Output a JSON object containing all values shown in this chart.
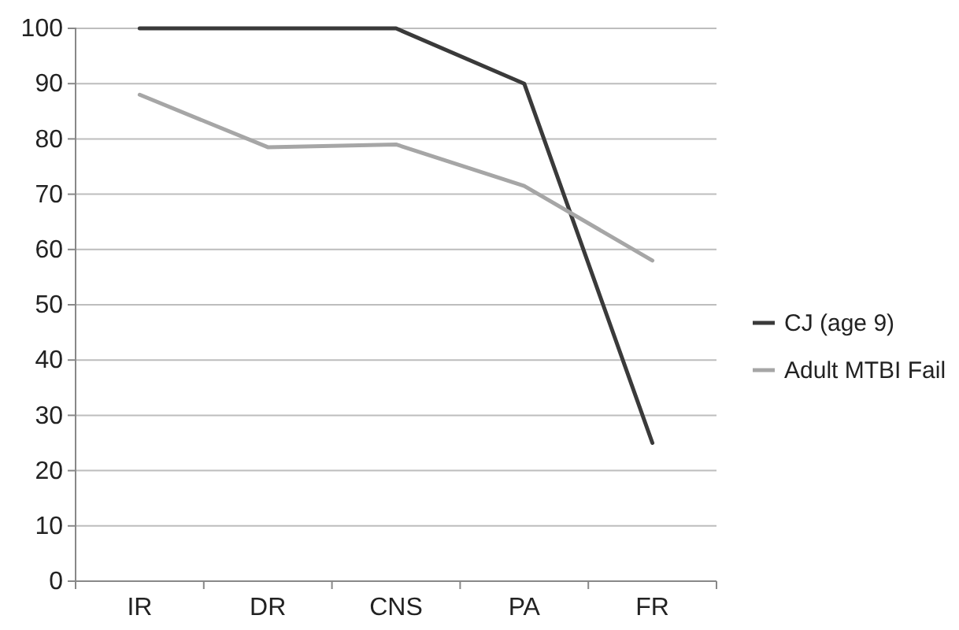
{
  "chart_data": {
    "type": "line",
    "categories": [
      "IR",
      "DR",
      "CNS",
      "PA",
      "FR"
    ],
    "series": [
      {
        "name": "CJ (age 9)",
        "color": "#3a3a3a",
        "values": [
          100,
          100,
          100,
          90,
          25
        ]
      },
      {
        "name": "Adult MTBI Fail",
        "color": "#a6a6a6",
        "values": [
          88,
          78.5,
          79,
          71.5,
          58
        ]
      }
    ],
    "ylim": [
      0,
      100
    ],
    "yticks": [
      0,
      10,
      20,
      30,
      40,
      50,
      60,
      70,
      80,
      90,
      100
    ],
    "grid": "y",
    "legend": "right",
    "marker": "none",
    "line_style": "solid"
  }
}
